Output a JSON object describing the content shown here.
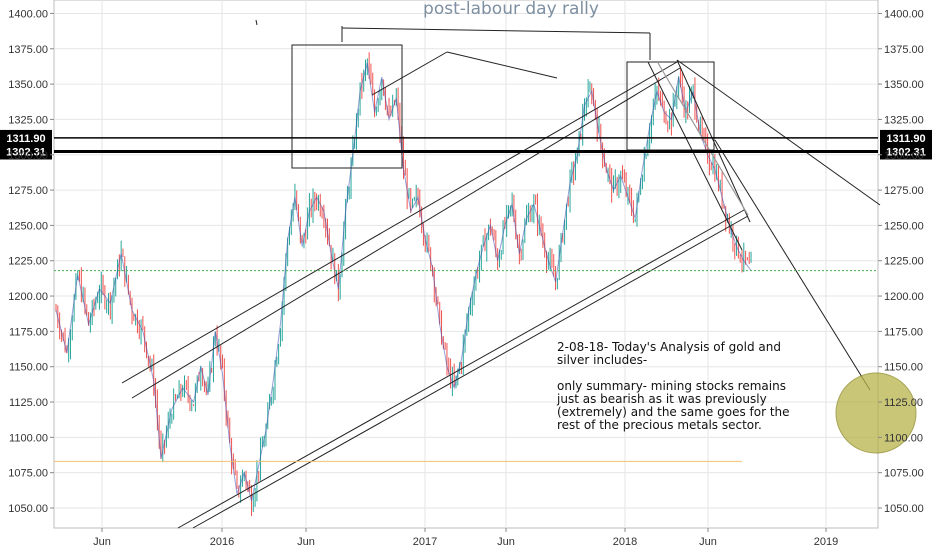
{
  "chart_data": {
    "type": "candlestick",
    "title": "post-labour day rally",
    "x_tick_labels": [
      "Jun",
      "2016",
      "Jun",
      "2017",
      "Jun",
      "2018",
      "Jun",
      "2019"
    ],
    "y_tick_labels": [
      "1050.00",
      "1075.00",
      "1100.00",
      "1125.00",
      "1150.00",
      "1175.00",
      "1200.00",
      "1225.00",
      "1250.00",
      "1275.00",
      "1300.00",
      "1325.00",
      "1350.00",
      "1375.00",
      "1400.00"
    ],
    "ylim": [
      1040,
      1405
    ],
    "price_path": [
      [
        0,
        1190
      ],
      [
        3,
        1160
      ],
      [
        6,
        1215
      ],
      [
        9,
        1180
      ],
      [
        12,
        1205
      ],
      [
        15,
        1195
      ],
      [
        18,
        1230
      ],
      [
        21,
        1190
      ],
      [
        24,
        1175
      ],
      [
        27,
        1140
      ],
      [
        29,
        1085
      ],
      [
        32,
        1120
      ],
      [
        35,
        1135
      ],
      [
        38,
        1125
      ],
      [
        40,
        1150
      ],
      [
        42,
        1130
      ],
      [
        44,
        1175
      ],
      [
        46,
        1145
      ],
      [
        48,
        1095
      ],
      [
        50,
        1060
      ],
      [
        52,
        1075
      ],
      [
        54,
        1055
      ],
      [
        56,
        1080
      ],
      [
        58,
        1105
      ],
      [
        60,
        1140
      ],
      [
        62,
        1180
      ],
      [
        64,
        1240
      ],
      [
        66,
        1270
      ],
      [
        68,
        1235
      ],
      [
        70,
        1260
      ],
      [
        72,
        1270
      ],
      [
        74,
        1260
      ],
      [
        76,
        1230
      ],
      [
        78,
        1205
      ],
      [
        80,
        1260
      ],
      [
        82,
        1300
      ],
      [
        84,
        1345
      ],
      [
        86,
        1365
      ],
      [
        88,
        1330
      ],
      [
        90,
        1355
      ],
      [
        92,
        1325
      ],
      [
        94,
        1340
      ],
      [
        96,
        1290
      ],
      [
        98,
        1260
      ],
      [
        100,
        1270
      ],
      [
        102,
        1240
      ],
      [
        104,
        1220
      ],
      [
        106,
        1180
      ],
      [
        108,
        1150
      ],
      [
        110,
        1135
      ],
      [
        112,
        1155
      ],
      [
        114,
        1190
      ],
      [
        116,
        1215
      ],
      [
        118,
        1235
      ],
      [
        120,
        1250
      ],
      [
        122,
        1225
      ],
      [
        124,
        1250
      ],
      [
        126,
        1265
      ],
      [
        128,
        1230
      ],
      [
        130,
        1255
      ],
      [
        132,
        1265
      ],
      [
        134,
        1245
      ],
      [
        136,
        1225
      ],
      [
        138,
        1210
      ],
      [
        140,
        1245
      ],
      [
        142,
        1280
      ],
      [
        144,
        1300
      ],
      [
        146,
        1335
      ],
      [
        148,
        1345
      ],
      [
        150,
        1315
      ],
      [
        152,
        1290
      ],
      [
        154,
        1275
      ],
      [
        156,
        1285
      ],
      [
        158,
        1270
      ],
      [
        160,
        1255
      ],
      [
        162,
        1290
      ],
      [
        164,
        1320
      ],
      [
        166,
        1345
      ],
      [
        168,
        1330
      ],
      [
        170,
        1325
      ],
      [
        172,
        1355
      ],
      [
        174,
        1330
      ],
      [
        176,
        1345
      ],
      [
        178,
        1315
      ],
      [
        180,
        1300
      ],
      [
        182,
        1290
      ],
      [
        184,
        1270
      ],
      [
        186,
        1250
      ],
      [
        188,
        1235
      ],
      [
        190,
        1225
      ],
      [
        192,
        1218
      ]
    ],
    "horizontal_levels": [
      {
        "label": "1311.90",
        "value": 1311.9
      },
      {
        "label": "1302.31",
        "value": 1302.31
      }
    ],
    "dotted_level": 1218,
    "support_level": 1083,
    "annotation_title": "2-08-18- Today's Analysis of gold and silver includes-",
    "annotation_body": "only summary- mining stocks remains just as bearish as it was previously (extremely) and the same goes for the rest of the precious metals sector.",
    "colors": {
      "up": "#26a69a",
      "down": "#ef5350",
      "ma": "#3f51b5",
      "grid": "#e6e6e6",
      "text": "#333333",
      "title": "#7d8fa1",
      "target_fill": "#b7b34a",
      "orange_line": "#f0c070",
      "green_dotted": "#4caf50"
    }
  }
}
